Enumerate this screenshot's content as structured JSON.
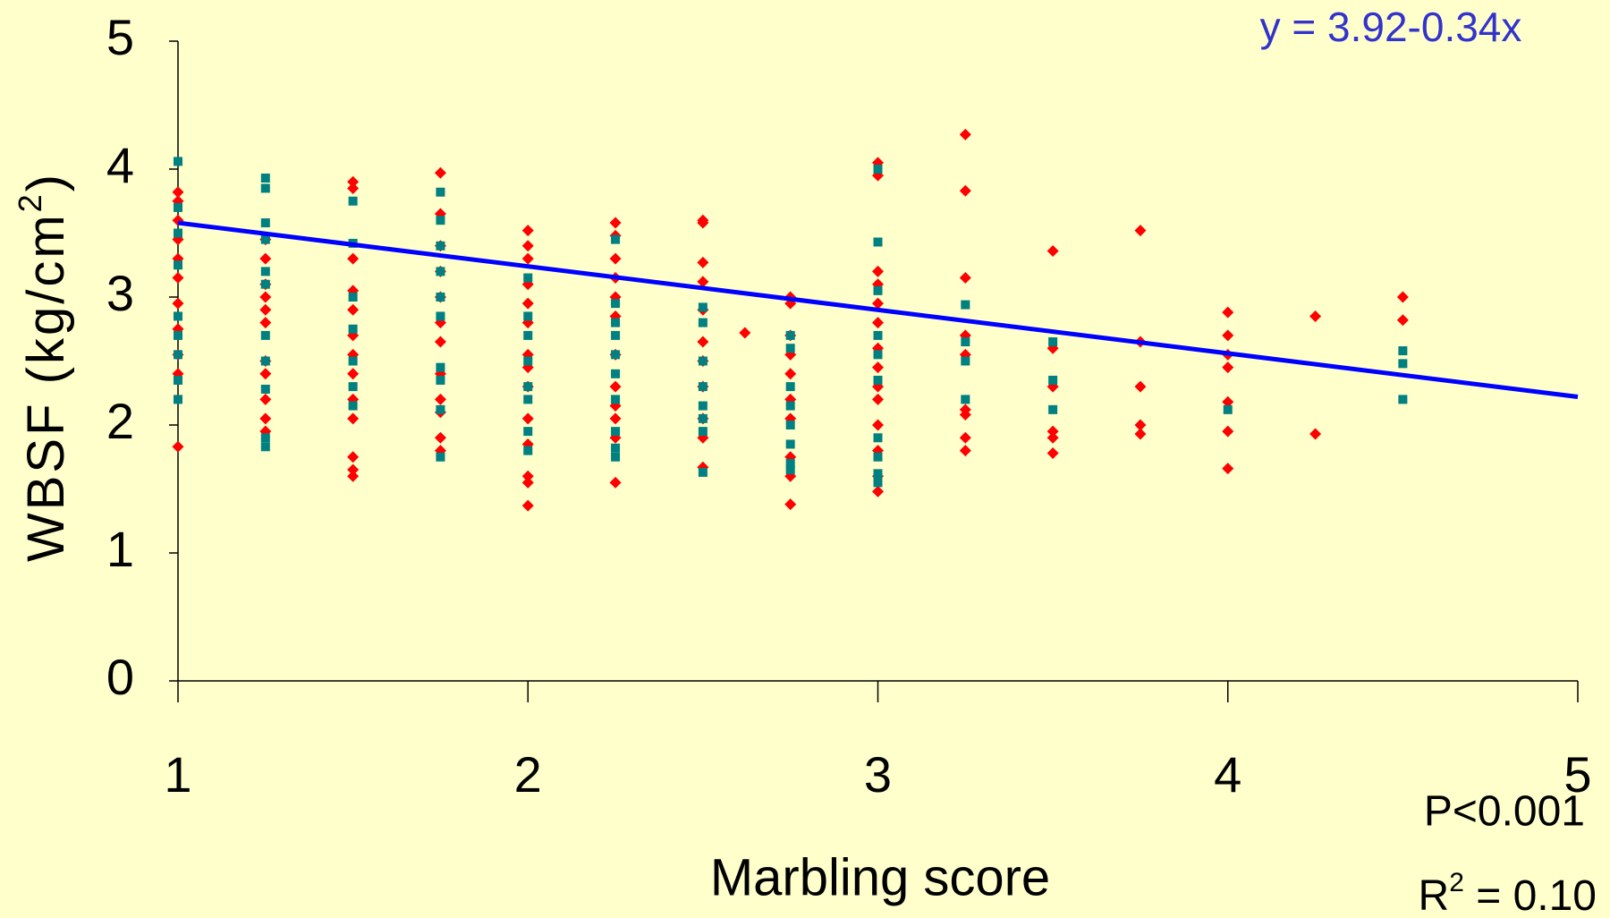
{
  "chart_data": {
    "type": "scatter",
    "xlabel": "Marbling score",
    "ylabel": [
      "WBSF (kg/cm",
      "2",
      ")"
    ],
    "annotations": {
      "equation": "y = 3.92-0.34x",
      "p_value": "P<0.001",
      "r_squared": [
        "R",
        "2",
        " = 0.10"
      ]
    },
    "xlim": [
      1,
      5
    ],
    "xticks": [
      1,
      2,
      3,
      4,
      5
    ],
    "ylim": [
      0,
      5
    ],
    "yticks": [
      0,
      1,
      2,
      3,
      4,
      5
    ],
    "series": [
      {
        "color": "#ff0000",
        "marker": "diamond",
        "x": [
          1,
          1,
          1,
          1,
          1,
          1,
          1,
          1,
          1,
          1,
          1,
          1.25,
          1.25,
          1.25,
          1.25,
          1.25,
          1.25,
          1.25,
          1.25,
          1.25,
          1.25,
          1.25,
          1.5,
          1.5,
          1.5,
          1.5,
          1.5,
          1.5,
          1.5,
          1.5,
          1.5,
          1.5,
          1.5,
          1.5,
          1.5,
          1.75,
          1.75,
          1.75,
          1.75,
          1.75,
          1.75,
          1.75,
          1.75,
          1.75,
          1.75,
          1.75,
          1.75,
          2,
          2,
          2,
          2,
          2,
          2,
          2,
          2,
          2,
          2,
          2,
          2,
          2,
          2,
          2.25,
          2.25,
          2.25,
          2.25,
          2.25,
          2.25,
          2.25,
          2.25,
          2.25,
          2.25,
          2.25,
          2.25,
          2.5,
          2.5,
          2.5,
          2.5,
          2.5,
          2.5,
          2.5,
          2.5,
          2.5,
          2.5,
          2.5,
          2.62,
          2.75,
          2.75,
          2.75,
          2.75,
          2.75,
          2.75,
          2.75,
          2.75,
          2.75,
          2.75,
          3,
          3,
          3,
          3,
          3,
          3,
          3,
          3,
          3,
          3,
          3,
          3,
          3,
          3,
          3.25,
          3.25,
          3.25,
          3.25,
          3.25,
          3.25,
          3.25,
          3.25,
          3.25,
          3.5,
          3.5,
          3.5,
          3.5,
          3.5,
          3.5,
          3.75,
          3.75,
          3.75,
          3.75,
          3.75,
          4,
          4,
          4,
          4,
          4,
          4,
          4,
          4.25,
          4.25,
          4.5,
          4.5
        ],
        "values": [
          3.82,
          3.75,
          3.6,
          3.45,
          3.3,
          3.15,
          2.95,
          2.75,
          2.55,
          2.4,
          1.83,
          3.45,
          3.3,
          3.1,
          3.0,
          2.9,
          2.8,
          2.5,
          2.4,
          2.2,
          2.05,
          1.95,
          3.9,
          3.85,
          3.3,
          3.05,
          2.9,
          2.7,
          2.55,
          2.4,
          2.2,
          2.05,
          1.75,
          1.65,
          1.6,
          3.97,
          3.65,
          3.4,
          3.2,
          3.0,
          2.8,
          2.65,
          2.4,
          2.2,
          2.1,
          1.9,
          1.8,
          3.52,
          3.4,
          3.3,
          3.1,
          2.95,
          2.8,
          2.55,
          2.45,
          2.3,
          2.05,
          1.85,
          1.6,
          1.55,
          1.37,
          3.58,
          3.48,
          3.3,
          3.15,
          3.0,
          2.85,
          2.55,
          2.3,
          2.15,
          2.05,
          1.9,
          1.55,
          3.6,
          3.58,
          3.27,
          3.12,
          2.9,
          2.65,
          2.5,
          2.3,
          2.05,
          1.9,
          1.67,
          2.72,
          3.0,
          2.95,
          2.7,
          2.55,
          2.4,
          2.2,
          2.05,
          1.75,
          1.6,
          1.38,
          4.05,
          3.95,
          3.2,
          3.1,
          2.95,
          2.8,
          2.6,
          2.45,
          2.3,
          2.2,
          2.0,
          1.8,
          1.6,
          1.48,
          4.27,
          3.83,
          3.15,
          2.7,
          2.55,
          2.12,
          2.08,
          1.9,
          1.8,
          3.36,
          2.6,
          2.3,
          1.95,
          1.9,
          1.78,
          3.52,
          2.65,
          2.3,
          2.0,
          1.93,
          2.88,
          2.7,
          2.55,
          2.45,
          2.18,
          1.95,
          1.66,
          2.85,
          1.93,
          3.0,
          2.82
        ]
      },
      {
        "color": "#008080",
        "marker": "square",
        "x": [
          1,
          1,
          1,
          1,
          1,
          1,
          1,
          1,
          1,
          1.25,
          1.25,
          1.25,
          1.25,
          1.25,
          1.25,
          1.25,
          1.25,
          1.25,
          1.25,
          1.25,
          1.5,
          1.5,
          1.5,
          1.5,
          1.5,
          1.5,
          1.5,
          1.75,
          1.75,
          1.75,
          1.75,
          1.75,
          1.75,
          1.75,
          1.75,
          1.75,
          1.75,
          2,
          2,
          2,
          2,
          2,
          2,
          2,
          2,
          2.25,
          2.25,
          2.25,
          2.25,
          2.25,
          2.25,
          2.25,
          2.25,
          2.25,
          2.25,
          2.5,
          2.5,
          2.5,
          2.5,
          2.5,
          2.5,
          2.5,
          2.5,
          2.75,
          2.75,
          2.75,
          2.75,
          2.75,
          2.75,
          2.75,
          2.75,
          3,
          3,
          3,
          3,
          3,
          3,
          3,
          3,
          3,
          3,
          3.25,
          3.25,
          3.25,
          3.25,
          3.5,
          3.5,
          3.5,
          4,
          4.5,
          4.5,
          4.5
        ],
        "values": [
          4.06,
          3.7,
          3.5,
          3.25,
          2.85,
          2.7,
          2.55,
          2.35,
          2.2,
          3.93,
          3.85,
          3.58,
          3.45,
          3.2,
          3.1,
          2.7,
          2.5,
          2.28,
          1.9,
          1.83,
          3.75,
          3.42,
          3.0,
          2.75,
          2.5,
          2.3,
          2.15,
          3.82,
          3.6,
          3.4,
          3.2,
          3.0,
          2.85,
          2.45,
          2.35,
          2.12,
          1.75,
          3.15,
          2.85,
          2.7,
          2.5,
          2.3,
          2.2,
          1.95,
          1.8,
          3.45,
          2.95,
          2.8,
          2.7,
          2.55,
          2.4,
          2.2,
          1.95,
          1.82,
          1.75,
          2.92,
          2.8,
          2.5,
          2.3,
          2.15,
          2.05,
          1.95,
          1.63,
          2.7,
          2.6,
          2.3,
          2.15,
          2.0,
          1.85,
          1.7,
          1.65,
          4.0,
          3.43,
          3.05,
          2.7,
          2.55,
          2.35,
          1.9,
          1.75,
          1.62,
          1.55,
          2.94,
          2.65,
          2.5,
          2.2,
          2.65,
          2.35,
          2.12,
          2.12,
          2.58,
          2.48,
          2.2
        ]
      }
    ],
    "trendline": {
      "color": "#0000ff",
      "x": [
        1,
        5
      ],
      "values": [
        3.58,
        2.22
      ]
    }
  }
}
